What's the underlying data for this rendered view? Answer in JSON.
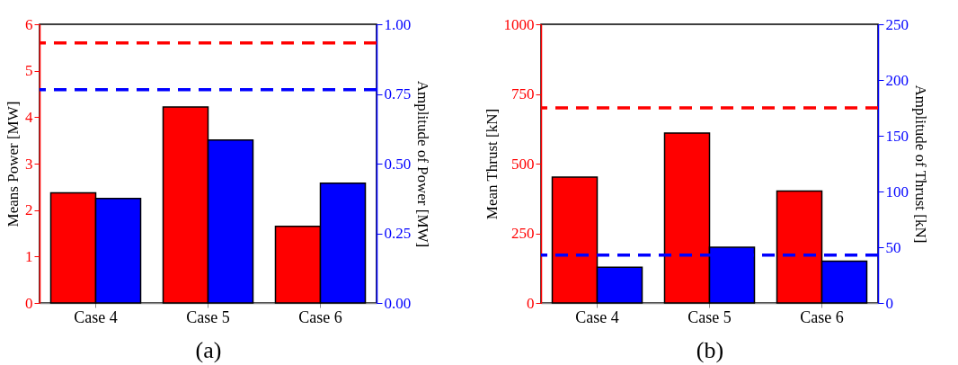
{
  "chart_data": [
    {
      "type": "bar",
      "categories": [
        "Case 4",
        "Case 5",
        "Case 6"
      ],
      "xlabel": "(a)",
      "ylabel": "Means Power [MW]",
      "y2label": "Amplitude of Power [MW]",
      "series": [
        {
          "color": "#ff0000",
          "values": [
            2.37,
            4.22,
            1.65
          ]
        },
        {
          "color": "#0000ff",
          "values": [
            0.375,
            0.585,
            0.43
          ],
          "axis": "y2"
        }
      ],
      "ylim": [
        0,
        6
      ],
      "yticks": [
        0,
        1,
        2,
        3,
        4,
        5,
        6
      ],
      "y2lim": [
        0,
        1
      ],
      "y2ticks": [
        {
          "value": 0,
          "label": "0.00"
        },
        {
          "value": 0.25,
          "label": "0.25"
        },
        {
          "value": 0.5,
          "label": "0.50"
        },
        {
          "value": 0.75,
          "label": "0.75"
        },
        {
          "value": 1,
          "label": "1.00"
        }
      ],
      "ref_lines": [
        {
          "axis": "y",
          "value": 5.6,
          "color": "#ff0000",
          "line_style": "dashed"
        },
        {
          "axis": "y2",
          "value": 0.765,
          "color": "#0000ff",
          "line_style": "dashed"
        }
      ]
    },
    {
      "type": "bar",
      "categories": [
        "Case 4",
        "Case 5",
        "Case 6"
      ],
      "xlabel": "(b)",
      "ylabel": "Mean Thrust [kN]",
      "y2label": "Amplitude of Thrust [kN]",
      "series": [
        {
          "color": "#ff0000",
          "values": [
            452,
            610,
            402
          ]
        },
        {
          "color": "#0000ff",
          "values": [
            32,
            50,
            37.5
          ],
          "axis": "y2"
        }
      ],
      "ylim": [
        0,
        1000
      ],
      "yticks": [
        0,
        250,
        500,
        750,
        1000
      ],
      "y2lim": [
        0,
        250
      ],
      "y2ticks": [
        0,
        50,
        100,
        150,
        200,
        250
      ],
      "ref_lines": [
        {
          "axis": "y",
          "value": 700,
          "color": "#ff0000",
          "line_style": "dashed"
        },
        {
          "axis": "y2",
          "value": 43,
          "color": "#0000ff",
          "line_style": "dashed"
        }
      ]
    }
  ]
}
